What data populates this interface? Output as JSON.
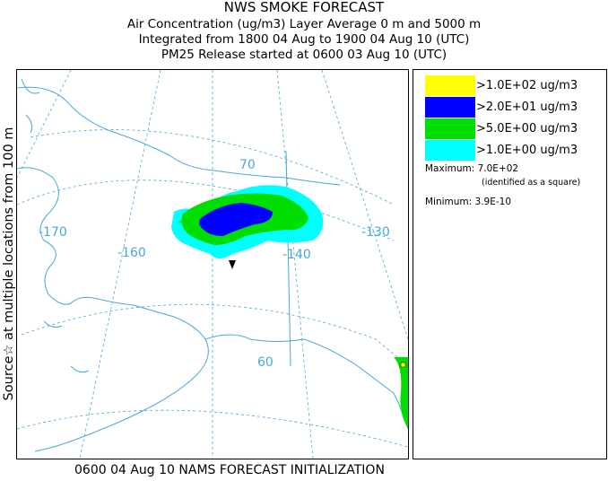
{
  "header": {
    "title": "NWS SMOKE FORECAST",
    "line2": "Air Concentration (ug/m3) Layer Average    0 m and  5000 m",
    "line3": "Integrated from 1800 04 Aug to 1900 04 Aug 10 (UTC)",
    "line4": "PM25 Release started at 0600 03 Aug 10 (UTC)"
  },
  "side_label": "Source☆  at multiple locations   from   100 m",
  "footer": "0600 04 Aug 10 NAMS FORECAST INITIALIZATION",
  "map": {
    "latitude_labels": [
      "70",
      "60"
    ],
    "longitude_labels": [
      "-170",
      "-160",
      "-140",
      "-130"
    ],
    "grid_color": "#4aa8d8",
    "coast_color": "#4aa8d8"
  },
  "legend": {
    "items": [
      {
        "label": ">1.0E+02 ug/m3",
        "color": "#ffff00"
      },
      {
        "label": ">2.0E+01 ug/m3",
        "color": "#0000ff"
      },
      {
        "label": ">5.0E+00 ug/m3",
        "color": "#00dd00"
      },
      {
        "label": ">1.0E+00 ug/m3",
        "color": "#00ffff"
      }
    ],
    "maximum": "Maximum: 7.0E+02",
    "maximum_note": "(identified as a square)",
    "minimum": "Minimum: 3.9E-10"
  }
}
